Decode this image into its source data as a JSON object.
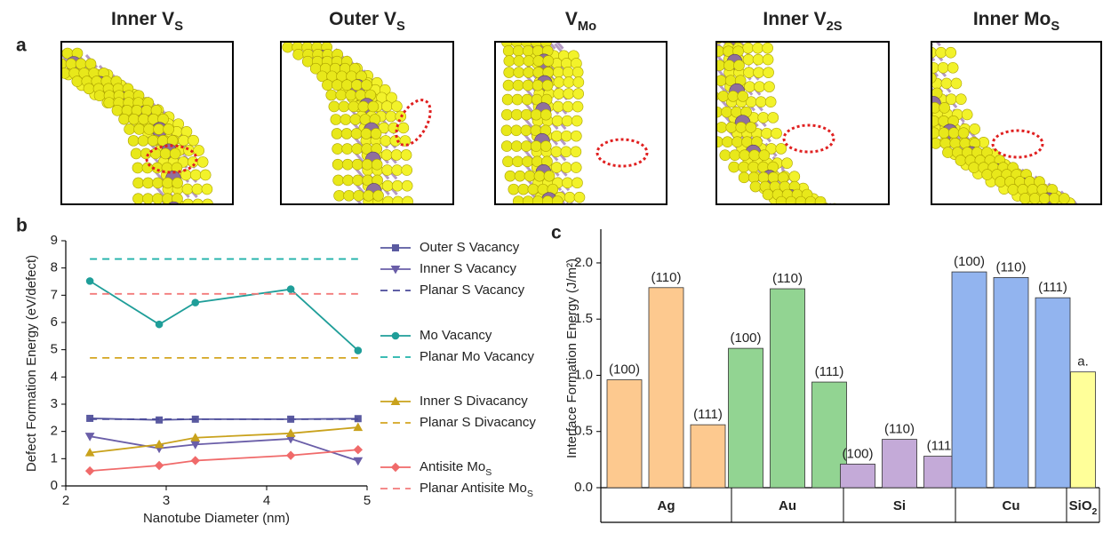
{
  "panel_a": {
    "label": "a",
    "panels": [
      {
        "title": "Inner V",
        "subscript": "S"
      },
      {
        "title": "Outer V",
        "subscript": "S"
      },
      {
        "title": "V",
        "subscript": "Mo"
      },
      {
        "title": "Inner V",
        "subscript": "2S"
      },
      {
        "title": "Inner Mo",
        "subscript": "S"
      }
    ]
  },
  "chart_data": [
    {
      "type": "line",
      "label": "b",
      "x_label": "Nanotube Diameter (nm)",
      "y_label": "Defect Formation Energy (eV/defect)",
      "xlim": [
        2,
        5
      ],
      "xticks": [
        2,
        3,
        4,
        5
      ],
      "ylim": [
        0,
        9
      ],
      "yticks": [
        0,
        1,
        2,
        3,
        4,
        5,
        6,
        7,
        8,
        9
      ],
      "series": [
        {
          "name": "Outer S Vacancy",
          "color": "#5a5aa0",
          "marker": "square",
          "style": "solid",
          "x": [
            2.24,
            2.93,
            3.29,
            4.24,
            4.91
          ],
          "values": [
            2.48,
            2.42,
            2.45,
            2.45,
            2.47
          ]
        },
        {
          "name": "Inner S Vacancy",
          "color": "#6a5ea8",
          "marker": "triangle-down",
          "style": "solid",
          "x": [
            2.24,
            2.93,
            3.29,
            4.24,
            4.91
          ],
          "values": [
            1.82,
            1.38,
            1.52,
            1.73,
            0.92
          ]
        },
        {
          "name": "Planar S Vacancy",
          "color": "#4a4a9a",
          "marker": "none",
          "style": "dashed",
          "x": [
            2.24,
            4.91
          ],
          "values": [
            2.45,
            2.45
          ]
        },
        {
          "name": "Mo Vacancy",
          "color": "#1f9e99",
          "marker": "circle",
          "style": "solid",
          "x": [
            2.24,
            2.93,
            3.29,
            4.24,
            4.91
          ],
          "values": [
            7.52,
            5.93,
            6.73,
            7.22,
            4.97
          ]
        },
        {
          "name": "Planar Mo Vacancy",
          "color": "#20b2aa",
          "marker": "none",
          "style": "dashed",
          "x": [
            2.24,
            4.91
          ],
          "values": [
            8.33,
            8.33
          ]
        },
        {
          "name": "Inner S Divacancy",
          "color": "#c9a21c",
          "marker": "triangle-up",
          "style": "solid",
          "x": [
            2.24,
            2.93,
            3.29,
            4.24,
            4.91
          ],
          "values": [
            1.22,
            1.52,
            1.77,
            1.93,
            2.15
          ]
        },
        {
          "name": "Planar S Divacancy",
          "color": "#d4a520",
          "marker": "none",
          "style": "dashed",
          "x": [
            2.24,
            4.91
          ],
          "values": [
            4.7,
            4.7
          ]
        },
        {
          "name": "Antisite Mo",
          "name_sub": "S",
          "color": "#f06a6a",
          "marker": "diamond",
          "style": "solid",
          "x": [
            2.24,
            2.93,
            3.29,
            4.24,
            4.91
          ],
          "values": [
            0.55,
            0.75,
            0.93,
            1.12,
            1.33
          ]
        },
        {
          "name": "Planar Antisite Mo",
          "name_sub": "S",
          "color": "#f37b7b",
          "marker": "none",
          "style": "dashed",
          "x": [
            2.24,
            4.91
          ],
          "values": [
            7.05,
            7.05
          ]
        }
      ]
    },
    {
      "type": "grouped-bar",
      "label": "c",
      "y_label": "Interface Formation Energy (J/m²)",
      "ylim": [
        0,
        2.3
      ],
      "yticks": [
        {
          "value": 0,
          "label": "0.0"
        },
        0.5,
        {
          "value": 1,
          "label": "1.0"
        },
        1.5,
        {
          "value": 2,
          "label": "2.0"
        }
      ],
      "groups": [
        {
          "name": "Ag",
          "color": "#fdc98f",
          "bars": [
            {
              "label": "(100)",
              "value": 0.96
            },
            {
              "label": "(110)",
              "value": 1.78
            },
            {
              "label": "(111)",
              "value": 0.56
            }
          ]
        },
        {
          "name": "Au",
          "color": "#92d492",
          "bars": [
            {
              "label": "(100)",
              "value": 1.24
            },
            {
              "label": "(110)",
              "value": 1.77
            },
            {
              "label": "(111)",
              "value": 0.94
            }
          ]
        },
        {
          "name": "Si",
          "color": "#c4aad8",
          "bars": [
            {
              "label": "(100)",
              "value": 0.21
            },
            {
              "label": "(110)",
              "value": 0.43
            },
            {
              "label": "(111)",
              "value": 0.28
            }
          ]
        },
        {
          "name": "Cu",
          "color": "#92b4ef",
          "bars": [
            {
              "label": "(100)",
              "value": 1.92
            },
            {
              "label": "(110)",
              "value": 1.87
            },
            {
              "label": "(111)",
              "value": 1.69
            }
          ]
        },
        {
          "name": "SiO",
          "name_sub": "2",
          "color": "#ffff99",
          "bars": [
            {
              "label": "a.",
              "value": 1.03
            }
          ]
        }
      ]
    }
  ]
}
